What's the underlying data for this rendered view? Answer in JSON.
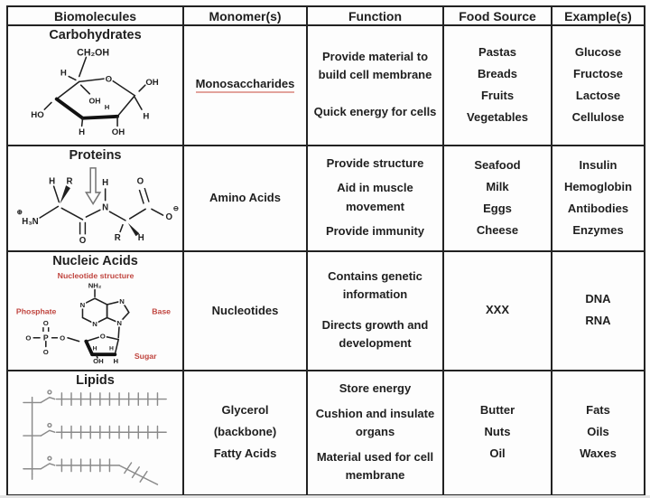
{
  "colors": {
    "border": "#222222",
    "text": "#1f1f1f",
    "red_accent": "#c0453f",
    "structure_gray": "#8a8a8a",
    "monomer_underline": "#e2a39c"
  },
  "table": {
    "headers": [
      "Biomolecules",
      "Monomer(s)",
      "Function",
      "Food Source",
      "Example(s)"
    ],
    "rows": [
      {
        "name": "Carbohydrates",
        "monomer_lines": [
          "Monosaccharides"
        ],
        "functions": [
          "Provide material to build cell membrane",
          "Quick energy for cells"
        ],
        "food_sources": [
          "Pastas",
          "Breads",
          "Fruits",
          "Vegetables"
        ],
        "examples": [
          "Glucose",
          "Fructose",
          "Lactose",
          "Cellulose"
        ]
      },
      {
        "name": "Proteins",
        "monomer_lines": [
          "Amino Acids"
        ],
        "functions": [
          "Provide structure",
          "Aid in muscle movement",
          "Provide immunity"
        ],
        "food_sources": [
          "Seafood",
          "Milk",
          "Eggs",
          "Cheese"
        ],
        "examples": [
          "Insulin",
          "Hemoglobin",
          "Antibodies",
          "Enzymes"
        ]
      },
      {
        "name": "Nucleic Acids",
        "monomer_lines": [
          "Nucleotides"
        ],
        "functions": [
          "Contains genetic information",
          "Directs growth and development"
        ],
        "food_sources": [
          "XXX"
        ],
        "examples": [
          "DNA",
          "RNA"
        ]
      },
      {
        "name": "Lipids",
        "monomer_lines": [
          "Glycerol",
          "(backbone)",
          "Fatty Acids"
        ],
        "functions": [
          "Store energy",
          "Cushion and insulate organs",
          "Material used for cell membrane"
        ],
        "food_sources": [
          "Butter",
          "Nuts",
          "Oil"
        ],
        "examples": [
          "Fats",
          "Oils",
          "Waxes"
        ]
      }
    ]
  },
  "structures": {
    "glucose": {
      "labels": [
        "CH₂OH",
        "H",
        "O",
        "OH",
        "H",
        "OH",
        "H",
        "HO",
        "H",
        "OH"
      ]
    },
    "dipeptide": {
      "labels": [
        "⊕",
        "H₃N",
        "H",
        "R",
        "O",
        "H",
        "N",
        "R",
        "H",
        "O",
        "O",
        "⊖"
      ]
    },
    "nucleotide": {
      "caption": "Nucleotide structure",
      "phosphate_label": "Phosphate",
      "base_label": "Base",
      "sugar_label": "Sugar",
      "labels": [
        "NH₂",
        "N",
        "N",
        "N",
        "N",
        "O",
        "P",
        "O",
        "O",
        "O",
        "O",
        "H",
        "H",
        "OH",
        "H"
      ]
    }
  }
}
